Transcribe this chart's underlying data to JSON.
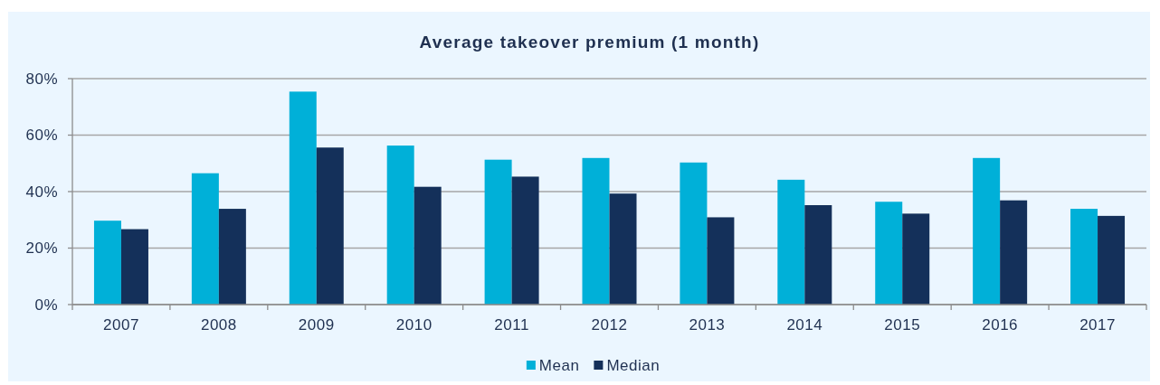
{
  "chart_data": {
    "type": "bar",
    "title": "Average takeover premium (1 month)",
    "categories": [
      "2007",
      "2008",
      "2009",
      "2010",
      "2011",
      "2012",
      "2013",
      "2014",
      "2015",
      "2016",
      "2017"
    ],
    "series": [
      {
        "name": "Mean",
        "color": "#00b0d8",
        "values": [
          29.7,
          46.5,
          75.4,
          56.3,
          51.3,
          51.9,
          50.3,
          44.2,
          36.4,
          51.9,
          33.9
        ]
      },
      {
        "name": "Median",
        "color": "#14305a",
        "values": [
          26.7,
          33.9,
          55.6,
          41.7,
          45.3,
          39.3,
          30.9,
          35.2,
          32.2,
          36.9,
          31.4
        ]
      }
    ],
    "ylim": [
      0,
      80
    ],
    "yticks": [
      {
        "value": 0,
        "label": "0%"
      },
      {
        "value": 20,
        "label": "20%"
      },
      {
        "value": 40,
        "label": "40%"
      },
      {
        "value": 60,
        "label": "60%"
      },
      {
        "value": 80,
        "label": "80%"
      }
    ],
    "grid": "y",
    "legend": "bottom"
  }
}
